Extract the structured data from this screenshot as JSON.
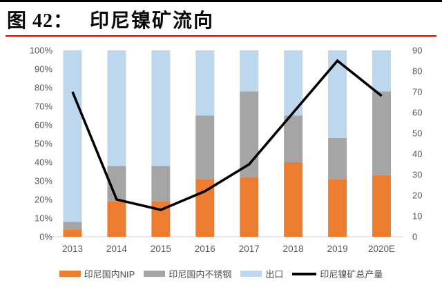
{
  "header": {
    "figure_label": "图 42：",
    "title": "印尼镍矿流向"
  },
  "colors": {
    "nip_orange": "#ED7D31",
    "stainless_gray": "#A5A5A5",
    "export_blue": "#BDD7EE",
    "line_black": "#000000",
    "axis_text": "#595959",
    "axis_line": "#D9D9D9",
    "red_rule": "#F10000",
    "top_rule": "#000000"
  },
  "chart_data": {
    "type": "combo-stacked-bar-line",
    "title": "印尼镍矿流向",
    "categories": [
      "2013",
      "2014",
      "2015",
      "2016",
      "2017",
      "2018",
      "2019",
      "2020E"
    ],
    "bar_unit": "percent-stacked-to-100",
    "series": [
      {
        "name": "印尼国内NIP",
        "type": "bar",
        "color": "#ED7D31",
        "values": [
          4,
          19,
          19,
          31,
          32,
          40,
          31,
          33
        ]
      },
      {
        "name": "印尼国内不锈钢",
        "type": "bar",
        "color": "#A5A5A5",
        "values": [
          4,
          19,
          19,
          34,
          46,
          25,
          22,
          45
        ]
      },
      {
        "name": "出口",
        "type": "bar",
        "color": "#BDD7EE",
        "values": [
          92,
          62,
          62,
          35,
          22,
          35,
          47,
          22
        ]
      },
      {
        "name": "印尼镍矿总产量",
        "type": "line",
        "color": "#000000",
        "values": [
          70,
          18,
          13,
          22,
          35,
          60,
          85,
          68
        ]
      }
    ],
    "left_axis": {
      "min": 0,
      "max": 100,
      "ticks": [
        "0%",
        "10%",
        "20%",
        "30%",
        "40%",
        "50%",
        "60%",
        "70%",
        "80%",
        "90%",
        "100%"
      ]
    },
    "right_axis": {
      "min": 0,
      "max": 90,
      "ticks": [
        "0",
        "10",
        "20",
        "30",
        "40",
        "50",
        "60",
        "70",
        "80",
        "90"
      ]
    },
    "grid": false,
    "legend_position": "bottom"
  }
}
